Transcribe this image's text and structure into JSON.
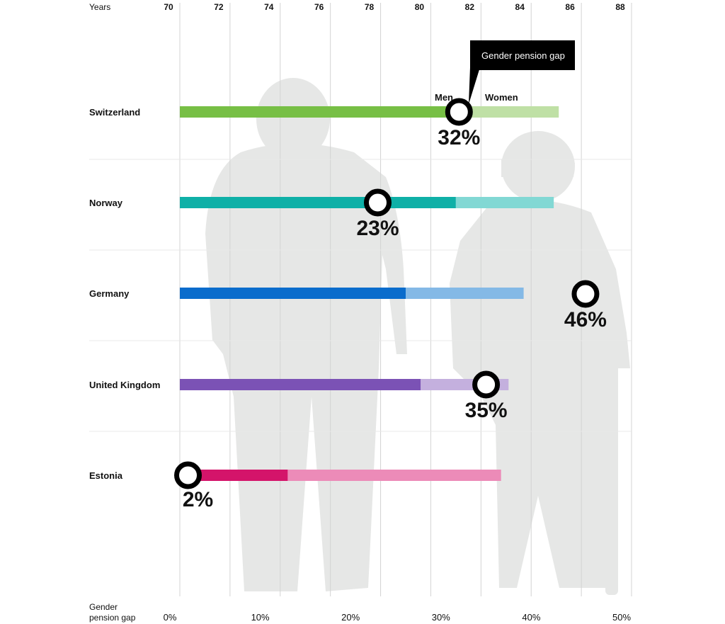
{
  "chart_data": {
    "type": "bar",
    "x_top": {
      "label": "Years",
      "ticks": [
        "70",
        "72",
        "74",
        "76",
        "78",
        "80",
        "82",
        "84",
        "86",
        "88"
      ],
      "range": [
        70,
        88
      ]
    },
    "x_bottom": {
      "label_line1": "Gender",
      "label_line2": "pension gap",
      "ticks": [
        "0%",
        "10%",
        "20%",
        "30%",
        "40%",
        "50%"
      ],
      "range": [
        0,
        50
      ]
    },
    "callout": {
      "title": "Gender pension gap",
      "men_label": "Men",
      "women_label": "Women"
    },
    "series_names": [
      "Men",
      "Women"
    ],
    "countries": [
      {
        "name": "Switzerland",
        "men": 81.5,
        "women": 85.1,
        "gap": 32,
        "gap_label": "32%",
        "color_men": "#77bf45",
        "color_women": "#bfe0a5"
      },
      {
        "name": "Norway",
        "men": 81.0,
        "women": 84.9,
        "gap": 23,
        "gap_label": "23%",
        "color_men": "#0fb0a7",
        "color_women": "#82d8d4"
      },
      {
        "name": "Germany",
        "men": 79.0,
        "women": 83.7,
        "gap": 46,
        "gap_label": "46%",
        "color_men": "#0a6ccc",
        "color_women": "#84b9e6"
      },
      {
        "name": "United Kingdom",
        "men": 79.6,
        "women": 83.1,
        "gap": 35,
        "gap_label": "35%",
        "color_men": "#7b52b5",
        "color_women": "#c4b0de"
      },
      {
        "name": "Estonia",
        "men": 74.3,
        "women": 82.8,
        "gap": 2,
        "gap_label": "2%",
        "color_men": "#d4146a",
        "color_women": "#ec8bb8"
      }
    ],
    "grid": true
  }
}
